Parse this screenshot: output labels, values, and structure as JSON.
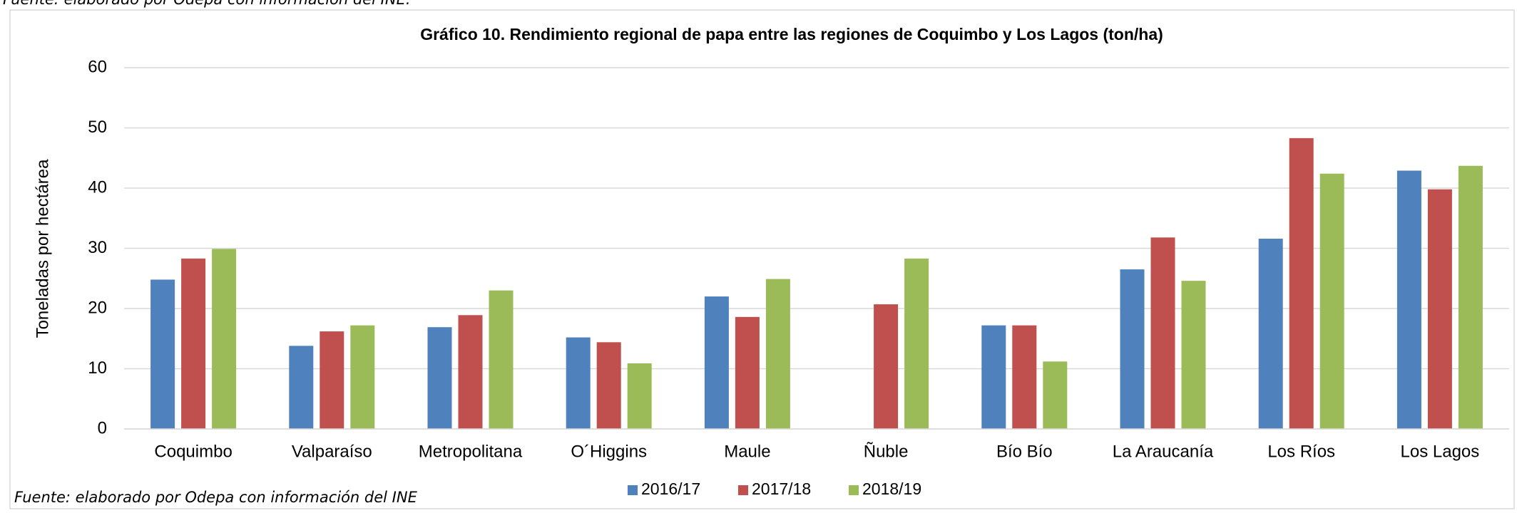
{
  "top_note": "Fuente: elaborado por Odepa con información del INE.",
  "chart_data": {
    "type": "bar",
    "title": "Gráfico 10. Rendimiento regional de papa entre las regiones de Coquimbo y Los Lagos (ton/ha)",
    "y_label": "Toneladas por hectárea",
    "categories": [
      "Coquimbo",
      "Valparaíso",
      "Metropolitana",
      "O´Higgins",
      "Maule",
      "Ñuble",
      "Bío Bío",
      "La Araucanía",
      "Los Ríos",
      "Los Lagos"
    ],
    "series": [
      {
        "name": "2016/17",
        "color": "#4f81bd",
        "values": [
          24.8,
          13.8,
          16.9,
          15.2,
          22.0,
          null,
          17.2,
          26.5,
          31.6,
          42.9
        ]
      },
      {
        "name": "2017/18",
        "color": "#c0504d",
        "values": [
          28.3,
          16.2,
          18.9,
          14.4,
          18.6,
          20.7,
          17.2,
          31.8,
          48.3,
          39.8
        ]
      },
      {
        "name": "2018/19",
        "color": "#9bbb59",
        "values": [
          29.9,
          17.2,
          23.0,
          10.9,
          24.9,
          28.3,
          11.2,
          24.6,
          42.4,
          43.7
        ]
      }
    ],
    "ylim": [
      0,
      60
    ],
    "yticks": [
      0,
      10,
      20,
      30,
      40,
      50,
      60
    ],
    "grid": true,
    "legend": "bottom"
  },
  "footnote": "Fuente: elaborado por Odepa con información del INE"
}
